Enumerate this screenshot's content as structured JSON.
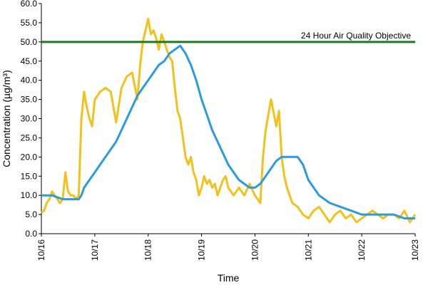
{
  "chart_data": {
    "type": "line",
    "xlabel": "Time",
    "ylabel": "Concentration (µg/m³)",
    "ylim": [
      0,
      60
    ],
    "y_ticks": [
      "0.0",
      "5.0",
      "10.0",
      "15.0",
      "20.0",
      "25.0",
      "30.0",
      "35.0",
      "40.0",
      "45.0",
      "50.0",
      "55.0",
      "60.0"
    ],
    "x_categories": [
      "10/16",
      "10/17",
      "10/18",
      "10/19",
      "10/20",
      "10/21",
      "10/22",
      "10/23"
    ],
    "grid": false,
    "legend": "none",
    "objective": {
      "label": "24 Hour Air Quality Objective",
      "value": 50,
      "color": "#1f7a1f"
    },
    "series": [
      {
        "color": "#f2c21b",
        "x": [
          0,
          0.05,
          0.1,
          0.15,
          0.2,
          0.25,
          0.3,
          0.35,
          0.4,
          0.45,
          0.5,
          0.55,
          0.6,
          0.65,
          0.7,
          0.75,
          0.8,
          0.85,
          0.9,
          0.95,
          1.0,
          1.1,
          1.2,
          1.3,
          1.4,
          1.5,
          1.6,
          1.7,
          1.8,
          1.85,
          1.9,
          1.95,
          2.0,
          2.05,
          2.1,
          2.15,
          2.2,
          2.25,
          2.3,
          2.35,
          2.4,
          2.45,
          2.5,
          2.55,
          2.6,
          2.65,
          2.7,
          2.75,
          2.8,
          2.85,
          2.9,
          2.95,
          3.0,
          3.05,
          3.1,
          3.15,
          3.2,
          3.25,
          3.3,
          3.35,
          3.4,
          3.45,
          3.5,
          3.55,
          3.6,
          3.65,
          3.7,
          3.8,
          3.9,
          4.0,
          4.05,
          4.1,
          4.15,
          4.2,
          4.3,
          4.4,
          4.45,
          4.5,
          4.55,
          4.6,
          4.65,
          4.7,
          4.8,
          4.9,
          5.0,
          5.1,
          5.2,
          5.3,
          5.4,
          5.5,
          5.6,
          5.7,
          5.8,
          5.9,
          6.0,
          6.1,
          6.2,
          6.3,
          6.4,
          6.5,
          6.6,
          6.7,
          6.8,
          6.9,
          7.0
        ],
        "values": [
          5.5,
          6,
          8,
          9,
          11,
          10,
          9,
          8,
          9,
          16,
          11,
          10,
          10,
          9,
          10,
          30,
          37,
          33,
          30,
          28,
          35,
          37,
          38,
          37,
          29,
          38,
          41,
          42,
          35,
          44,
          50,
          53,
          56,
          52,
          53,
          51,
          48,
          52,
          50,
          48,
          46,
          45,
          38,
          32,
          30,
          25,
          20,
          18,
          20,
          16,
          14,
          10,
          12,
          15,
          13,
          14,
          12,
          13,
          10,
          12,
          14,
          15,
          12,
          11,
          10,
          11,
          12,
          10,
          13,
          10,
          9,
          8,
          20,
          27,
          35,
          28,
          32,
          20,
          15,
          12,
          10,
          8,
          7,
          5,
          4,
          6,
          7,
          5,
          3,
          5,
          6,
          4,
          5,
          3,
          4,
          5,
          6,
          5,
          4,
          5,
          5,
          4,
          6,
          3,
          5
        ]
      },
      {
        "color": "#2b9be0",
        "x": [
          0,
          0.2,
          0.4,
          0.6,
          0.7,
          0.75,
          0.8,
          0.85,
          0.9,
          1.0,
          1.1,
          1.2,
          1.3,
          1.4,
          1.5,
          1.6,
          1.7,
          1.8,
          1.9,
          2.0,
          2.1,
          2.2,
          2.3,
          2.4,
          2.5,
          2.6,
          2.7,
          2.8,
          2.9,
          3.0,
          3.1,
          3.2,
          3.3,
          3.4,
          3.5,
          3.6,
          3.7,
          3.8,
          3.9,
          4.0,
          4.1,
          4.2,
          4.3,
          4.4,
          4.5,
          4.6,
          4.7,
          4.8,
          4.9,
          5.0,
          5.2,
          5.4,
          5.6,
          5.8,
          6.0,
          6.2,
          6.4,
          6.6,
          6.8,
          7.0
        ],
        "values": [
          10,
          10,
          9,
          9,
          9,
          10,
          12,
          13,
          14,
          16,
          18,
          20,
          22,
          24,
          27,
          30,
          33,
          36,
          38,
          40,
          42,
          44,
          45,
          47,
          48,
          49,
          47,
          44,
          40,
          35,
          31,
          27,
          24,
          21,
          18,
          16,
          14,
          13,
          12,
          12,
          13,
          15,
          17,
          19,
          20,
          20,
          20,
          20,
          18,
          14,
          10,
          8,
          7,
          6,
          5,
          5,
          5,
          5,
          4,
          4
        ]
      }
    ]
  }
}
